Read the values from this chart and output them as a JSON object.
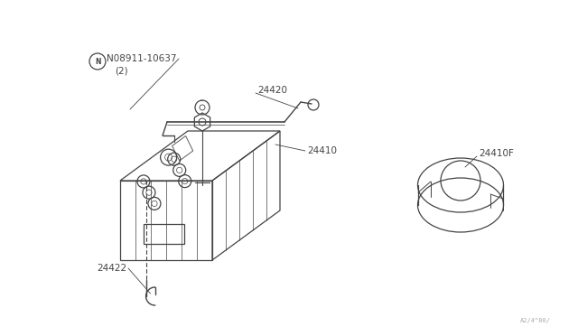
{
  "bg_color": "#ffffff",
  "line_color": "#444444",
  "fig_width": 6.4,
  "fig_height": 3.72,
  "dpi": 100,
  "watermark": "A2/4^00/",
  "labels": {
    "part_n": "N08911-10637",
    "part_n2": "(2)",
    "part_24420": "24420",
    "part_24410": "24410",
    "part_24410f": "24410F",
    "part_24422": "24422"
  }
}
